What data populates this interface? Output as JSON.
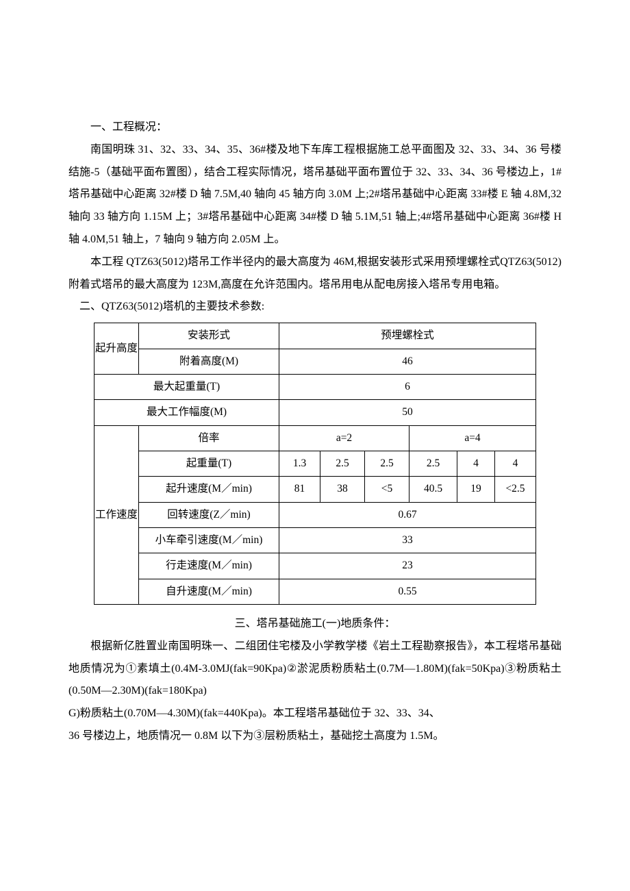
{
  "doc": {
    "section1_title": "一、工程概况：",
    "p1": "南国明珠 31、32、33、34、35、36#楼及地下车库工程根据施工总平面图及 32、33、34、36 号楼结施-5（基础平面布置图），结合工程实际情况，塔吊基础平面布置位于 32、33、34、36 号楼边上，1#塔吊基础中心距离 32#楼 D 轴 7.5M,40 轴向 45 轴方向 3.0M 上;2#塔吊基础中心距离 33#楼 E 轴 4.8M,32 轴向 33 轴方向 1.15M 上；3#塔吊基础中心距离 34#楼 D 轴 5.1M,51 轴上;4#塔吊基础中心距离 36#楼 H 轴 4.0M,51 轴上，7 轴向 9 轴方向 2.05M 上。",
    "p2": "本工程 QTZ63(5012)塔吊工作半径内的最大高度为 46M,根据安装形式采用预埋螺栓式QTZ63(5012)附着式塔吊的最大高度为 123M,高度在允许范围内。塔吊用电从配电房接入塔吊专用电箱。",
    "section2_title": "二、QTZ63(5012)塔机的主要技术参数:",
    "section3_title": "三、塔吊基础施工(一)地质条件：",
    "p3": "根据新亿胜置业南国明珠一、二组团住宅楼及小学教学楼《岩土工程勘察报告》，本工程塔吊基础地质情况为①素填土(0.4M-3.0MJ(fak=90Kpa)②淤泥质粉质粘土(0.7M—1.80M)(fak=50Kpa)③粉质粘土(0.50M—2.30M)(fak=180Kpa)",
    "p4": "G)粉质粘土(0.70M—4.30M)(fak=440Kpa)。本工程塔吊基础位于 32、33、34、",
    "p5": "36 号楼边上，地质情况一 0.8M 以下为③层粉质粘土，基础挖土高度为 1.5M。"
  },
  "table": {
    "col_widths": {
      "c1": 65,
      "c2": 205,
      "c3": 60,
      "c4": 65,
      "c5": 65,
      "c6": 70,
      "c7": 55,
      "c8": 60
    },
    "r1": {
      "label_vert": "起升高度",
      "label1": "安装形式",
      "val1": "预埋螺栓式"
    },
    "r2": {
      "label1": "附着高度(M)",
      "val1": "46"
    },
    "r3": {
      "label1": "最大起重量(T)",
      "val1": "6"
    },
    "r4": {
      "label1": "最大工作幅度(M)",
      "val1": "50"
    },
    "r5": {
      "label_vert": "工作速度",
      "label1": "倍率",
      "a2": "a=2",
      "a4": "a=4"
    },
    "r6": {
      "label1": "起重量(T)",
      "v1": "1.3",
      "v2": "2.5",
      "v3": "2.5",
      "v4": "2.5",
      "v5": "4",
      "v6": "4"
    },
    "r7": {
      "label1": "起升速度(M／min)",
      "v1": "81",
      "v2": "38",
      "v3": "<5",
      "v4": "40.5",
      "v5": "19",
      "v6": "<2.5"
    },
    "r8": {
      "label1": "回转速度(Z／min)",
      "val1": "0.67"
    },
    "r9": {
      "label1": "小车牵引速度(M／min)",
      "val1": "33"
    },
    "r10": {
      "label1": "行走速度(M／min)",
      "val1": "23"
    },
    "r11": {
      "label1": "自升速度(M／min)",
      "val1": "0.55"
    }
  }
}
